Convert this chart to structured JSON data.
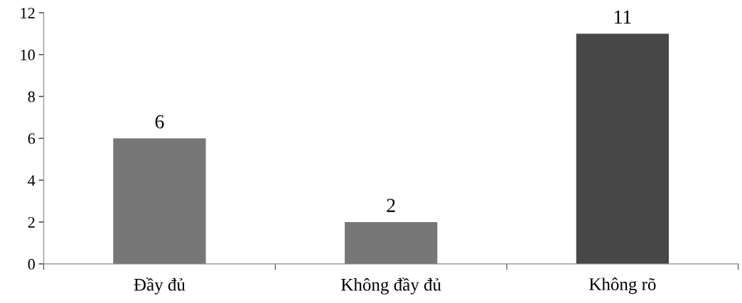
{
  "chart_data": {
    "type": "bar",
    "categories": [
      "Đầy đủ",
      "Không đầy đủ",
      "Không rõ"
    ],
    "values": [
      6,
      2,
      11
    ],
    "colors": [
      "#777777",
      "#777777",
      "#474747"
    ],
    "ylim": [
      0,
      12
    ],
    "yticks": [
      0,
      2,
      4,
      6,
      8,
      10,
      12
    ],
    "data_labels": true,
    "grid": false,
    "legend": false
  }
}
